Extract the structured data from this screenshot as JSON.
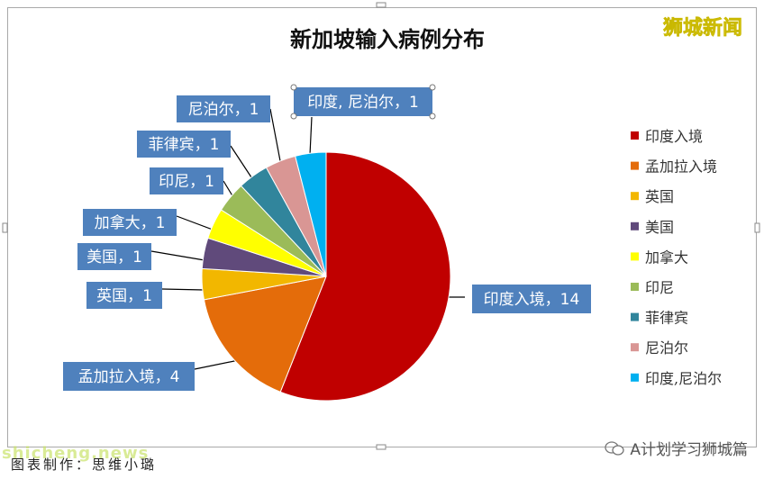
{
  "brand": {
    "text": "狮城新闻",
    "color": "#f7e94a"
  },
  "caption": "图表制作：思维小璐",
  "footer": {
    "account": "A计划学习狮城篇"
  },
  "watermark": "shicheng.news",
  "colors": {
    "india_import": "#c00000",
    "bangladesh": "#e46c0a",
    "uk": "#f2b700",
    "us": "#604a7b",
    "canada": "#ffff00",
    "indonesia": "#9bbb59",
    "philippines": "#31859c",
    "nepal": "#d99694",
    "india_nepal": "#00b0f0",
    "label_bg": "#4f81bd"
  },
  "chart_data": {
    "type": "pie",
    "title": "新加坡输入病例分布",
    "slices": [
      {
        "name": "印度入境",
        "value": 14,
        "label": "印度入境，14",
        "color_key": "india_import"
      },
      {
        "name": "孟加拉入境",
        "value": 4,
        "label": "孟加拉入境，4",
        "color_key": "bangladesh"
      },
      {
        "name": "英国",
        "value": 1,
        "label": "英国，1",
        "color_key": "uk"
      },
      {
        "name": "美国",
        "value": 1,
        "label": "美国，1",
        "color_key": "us"
      },
      {
        "name": "加拿大",
        "value": 1,
        "label": "加拿大，1",
        "color_key": "canada"
      },
      {
        "name": "印尼",
        "value": 1,
        "label": "印尼，1",
        "color_key": "indonesia"
      },
      {
        "name": "菲律宾",
        "value": 1,
        "label": "菲律宾，1",
        "color_key": "philippines"
      },
      {
        "name": "尼泊尔",
        "value": 1,
        "label": "尼泊尔，1",
        "color_key": "nepal"
      },
      {
        "name": "印度,尼泊尔",
        "value": 1,
        "label": "印度, 尼泊尔，1",
        "color_key": "india_nepal"
      }
    ],
    "legend": [
      "印度入境",
      "孟加拉入境",
      "英国",
      "美国",
      "加拿大",
      "印尼",
      "菲律宾",
      "尼泊尔",
      "印度,尼泊尔"
    ],
    "legend_position": "right"
  }
}
